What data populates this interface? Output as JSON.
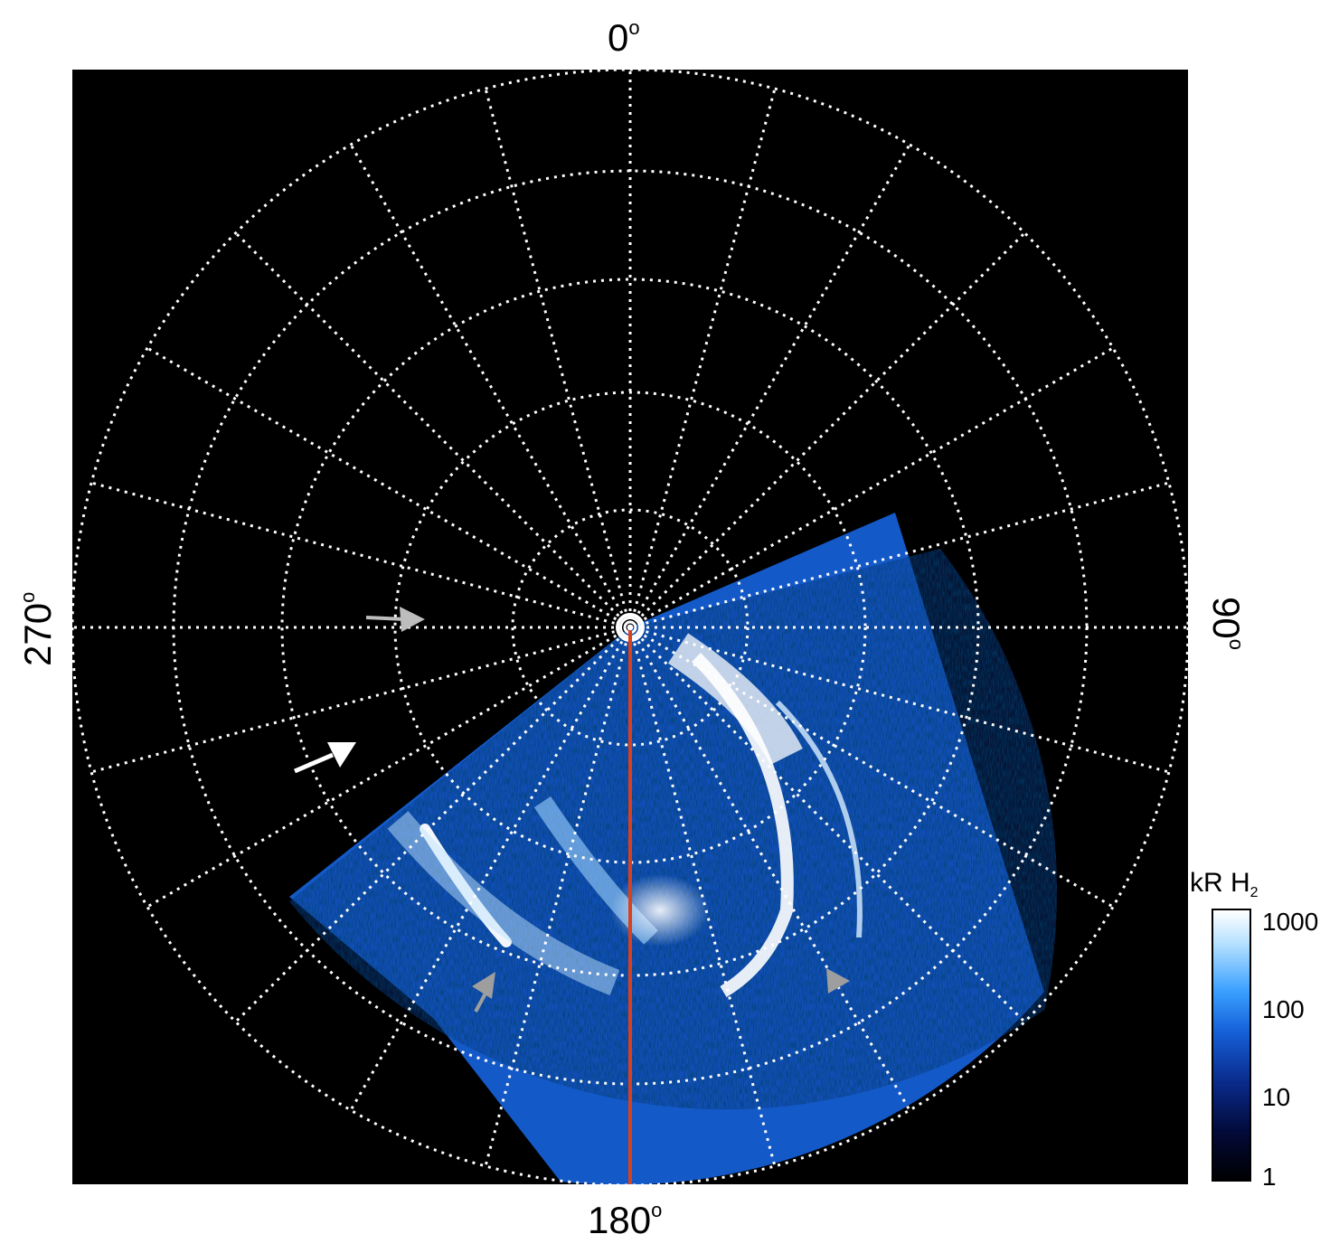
{
  "figure": {
    "longitude_labels": {
      "top": "0",
      "right": "90",
      "bottom": "180",
      "left": "270"
    },
    "degree_symbol": "o",
    "background_color": "#000000",
    "grid_color": "#ffffff",
    "meridian_line_color": "#d8411c"
  },
  "colorbar": {
    "title_main": "kR H",
    "title_sub": "2",
    "ticks": [
      "1000",
      "100",
      "10",
      "1"
    ],
    "scale": "log",
    "colormap": [
      "#000000",
      "#0a2a8a",
      "#1560d8",
      "#3aa0ff",
      "#ffffff"
    ]
  },
  "annotations": {
    "arrow_colors": [
      "#bdbdbd",
      "#ffffff",
      "#9e9e9e",
      "#9e9e9e"
    ]
  }
}
